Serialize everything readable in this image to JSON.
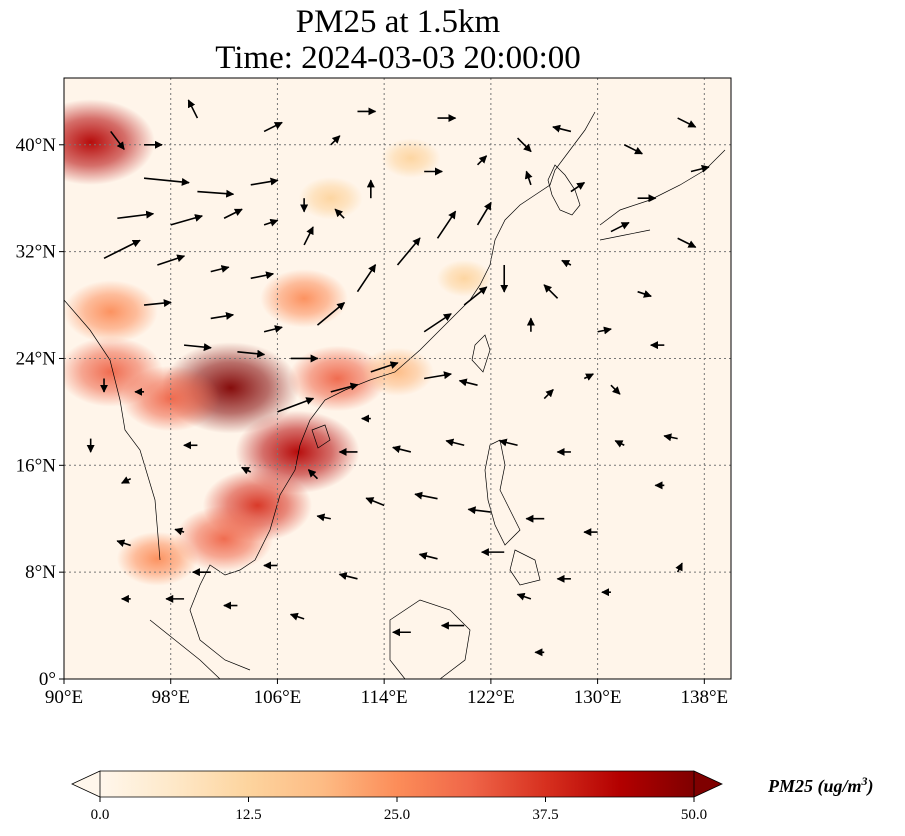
{
  "title": {
    "line1": "PM25 at 1.5km",
    "line2": "Time: 2024-03-03 20:00:00"
  },
  "map": {
    "lon_range": [
      90,
      140
    ],
    "lat_range": [
      0,
      45
    ],
    "x_ticks": [
      "90°E",
      "98°E",
      "106°E",
      "114°E",
      "122°E",
      "130°E",
      "138°E"
    ],
    "x_tick_values": [
      90,
      98,
      106,
      114,
      122,
      130,
      138
    ],
    "y_ticks": [
      "0°",
      "8°N",
      "16°N",
      "24°N",
      "32°N",
      "40°N"
    ],
    "y_tick_values": [
      0,
      8,
      16,
      24,
      32,
      40
    ],
    "gridlines": true,
    "hotspots": [
      {
        "lon": 102.5,
        "lat": 21.8,
        "value": 48
      },
      {
        "lon": 107.5,
        "lat": 17.0,
        "value": 42
      },
      {
        "lon": 104.5,
        "lat": 13.0,
        "value": 35
      },
      {
        "lon": 102.0,
        "lat": 10.5,
        "value": 30
      },
      {
        "lon": 93.5,
        "lat": 23.0,
        "value": 33
      },
      {
        "lon": 93.5,
        "lat": 27.5,
        "value": 28
      },
      {
        "lon": 108.0,
        "lat": 28.5,
        "value": 25
      },
      {
        "lon": 110.5,
        "lat": 22.5,
        "value": 30
      },
      {
        "lon": 92.0,
        "lat": 40.2,
        "value": 44
      },
      {
        "lon": 98.0,
        "lat": 21.0,
        "value": 30
      },
      {
        "lon": 97.0,
        "lat": 9.0,
        "value": 22
      },
      {
        "lon": 115.0,
        "lat": 23.0,
        "value": 18
      },
      {
        "lon": 110.0,
        "lat": 36.0,
        "value": 14
      },
      {
        "lon": 116.0,
        "lat": 39.0,
        "value": 12
      },
      {
        "lon": 120.0,
        "lat": 30.0,
        "value": 10
      }
    ],
    "wind_vectors": [
      [
        96.0,
        37.5,
        5.0,
        -0.5
      ],
      [
        100.0,
        36.5,
        4.0,
        -0.3
      ],
      [
        104.0,
        37.0,
        3.0,
        0.5
      ],
      [
        94.0,
        34.5,
        4.0,
        0.5
      ],
      [
        98.0,
        34.0,
        3.5,
        1.0
      ],
      [
        102.0,
        34.5,
        2.0,
        1.0
      ],
      [
        93.0,
        31.5,
        4.0,
        2.0
      ],
      [
        97.0,
        31.0,
        3.0,
        1.0
      ],
      [
        101.0,
        30.5,
        2.0,
        0.5
      ],
      [
        96.0,
        28.0,
        3.0,
        0.3
      ],
      [
        101.0,
        27.0,
        2.5,
        0.4
      ],
      [
        105.0,
        26.0,
        2.0,
        0.5
      ],
      [
        99.0,
        25.0,
        3.0,
        -0.3
      ],
      [
        103.0,
        24.5,
        3.0,
        -0.3
      ],
      [
        107.0,
        24.0,
        3.0,
        0.0
      ],
      [
        106.0,
        20.0,
        4.0,
        1.5
      ],
      [
        110.0,
        21.5,
        3.0,
        0.8
      ],
      [
        109.0,
        26.5,
        3.0,
        2.5
      ],
      [
        112.0,
        29.0,
        2.0,
        3.0
      ],
      [
        115.0,
        31.0,
        2.5,
        3.0
      ],
      [
        118.0,
        33.0,
        2.0,
        3.0
      ],
      [
        121.0,
        34.0,
        1.5,
        2.5
      ],
      [
        123.0,
        31.0,
        0.0,
        -3.0
      ],
      [
        120.0,
        28.0,
        2.5,
        2.0
      ],
      [
        117.0,
        26.0,
        3.0,
        2.0
      ],
      [
        113.0,
        23.0,
        3.0,
        1.0
      ],
      [
        117.0,
        22.5,
        3.0,
        0.5
      ],
      [
        121.0,
        22.0,
        -2.0,
        0.5
      ],
      [
        125.0,
        26.0,
        0.0,
        1.5
      ],
      [
        128.0,
        31.0,
        -1.0,
        0.5
      ],
      [
        113.0,
        36.0,
        0.0,
        2.0
      ],
      [
        117.0,
        38.0,
        2.0,
        0.0
      ],
      [
        110.0,
        40.0,
        1.0,
        1.0
      ],
      [
        105.0,
        41.0,
        2.0,
        1.0
      ],
      [
        100.0,
        42.0,
        -1.0,
        2.0
      ],
      [
        112.0,
        42.5,
        2.0,
        0.0
      ],
      [
        118.0,
        42.0,
        2.0,
        0.0
      ],
      [
        124.0,
        40.5,
        1.5,
        -1.5
      ],
      [
        128.0,
        41.0,
        -2.0,
        0.5
      ],
      [
        132.0,
        40.0,
        2.0,
        -1.0
      ],
      [
        136.0,
        42.0,
        2.0,
        -1.0
      ],
      [
        137.0,
        38.0,
        2.0,
        0.5
      ],
      [
        133.0,
        36.0,
        2.0,
        0.0
      ],
      [
        128.0,
        36.5,
        1.5,
        1.0
      ],
      [
        131.0,
        33.5,
        2.0,
        1.0
      ],
      [
        136.0,
        33.0,
        2.0,
        -1.0
      ],
      [
        133.0,
        29.0,
        1.5,
        -0.5
      ],
      [
        130.0,
        26.0,
        1.5,
        0.3
      ],
      [
        135.0,
        25.0,
        -1.5,
        0.0
      ],
      [
        131.0,
        22.0,
        1.0,
        -1.0
      ],
      [
        126.0,
        21.0,
        1.0,
        1.0
      ],
      [
        124.0,
        17.5,
        -2.0,
        0.5
      ],
      [
        128.0,
        17.0,
        -1.5,
        0.0
      ],
      [
        132.0,
        17.5,
        -1.0,
        0.5
      ],
      [
        136.0,
        18.0,
        -1.5,
        0.3
      ],
      [
        120.0,
        17.5,
        -2.0,
        0.5
      ],
      [
        116.0,
        17.0,
        -2.0,
        0.5
      ],
      [
        112.0,
        17.0,
        -2.0,
        0.0
      ],
      [
        114.0,
        13.0,
        -2.0,
        0.8
      ],
      [
        118.0,
        13.5,
        -2.5,
        0.5
      ],
      [
        122.0,
        12.5,
        -2.5,
        0.3
      ],
      [
        126.0,
        12.0,
        -2.0,
        0.0
      ],
      [
        130.0,
        11.0,
        -1.5,
        0.0
      ],
      [
        135.0,
        14.5,
        -1.0,
        0.0
      ],
      [
        110.0,
        12.0,
        -1.5,
        0.3
      ],
      [
        118.0,
        9.0,
        -2.0,
        0.5
      ],
      [
        123.0,
        9.5,
        -2.5,
        0.0
      ],
      [
        128.0,
        7.5,
        -1.5,
        0.0
      ],
      [
        112.0,
        7.5,
        -2.0,
        0.5
      ],
      [
        116.0,
        3.5,
        -2.0,
        0.0
      ],
      [
        120.0,
        4.0,
        -2.5,
        0.0
      ],
      [
        126.0,
        2.0,
        -1.0,
        0.0
      ],
      [
        108.0,
        4.5,
        -1.5,
        0.5
      ],
      [
        103.0,
        5.5,
        -1.5,
        0.0
      ],
      [
        99.0,
        6.0,
        -2.0,
        0.0
      ],
      [
        95.0,
        6.0,
        -1.0,
        0.0
      ],
      [
        95.0,
        10.0,
        -1.5,
        0.5
      ],
      [
        99.0,
        11.0,
        -1.0,
        0.3
      ],
      [
        101.0,
        8.0,
        -2.0,
        0.0
      ],
      [
        106.0,
        8.5,
        -1.5,
        0.0
      ],
      [
        109.0,
        15.0,
        -1.0,
        1.0
      ],
      [
        104.0,
        15.5,
        -1.0,
        0.5
      ],
      [
        100.0,
        17.5,
        -1.5,
        0.0
      ],
      [
        95.0,
        15.0,
        -1.0,
        -0.5
      ],
      [
        92.0,
        18.0,
        0.0,
        -1.5
      ],
      [
        93.0,
        22.5,
        0.0,
        -1.5
      ],
      [
        96.0,
        21.5,
        -1.0,
        0.0
      ],
      [
        108.0,
        32.5,
        1.0,
        2.0
      ],
      [
        105.0,
        34.0,
        1.5,
        0.5
      ],
      [
        108.0,
        36.0,
        0.0,
        -1.5
      ],
      [
        111.0,
        34.5,
        -1.0,
        1.0
      ],
      [
        93.5,
        41.0,
        1.5,
        -2.0
      ],
      [
        121.0,
        38.5,
        1.0,
        1.0
      ],
      [
        125.0,
        37.0,
        -0.5,
        1.5
      ],
      [
        127.0,
        28.5,
        -1.5,
        1.5
      ],
      [
        129.0,
        22.5,
        1.0,
        0.5
      ],
      [
        113.0,
        19.5,
        -1.0,
        0.0
      ],
      [
        125.0,
        6.0,
        -1.5,
        0.5
      ],
      [
        131.0,
        6.5,
        -1.0,
        0.0
      ],
      [
        136.0,
        8.0,
        0.5,
        1.0
      ],
      [
        104.0,
        30.0,
        2.5,
        0.5
      ],
      [
        96.0,
        40.0,
        2.0,
        0.0
      ]
    ]
  },
  "colorbar": {
    "label_main": "PM25 (ug/m",
    "label_exp": "3",
    "label_end": ")",
    "vmin": 0.0,
    "vmax": 50.0,
    "tick_labels": [
      "0.0",
      "12.5",
      "25.0",
      "37.5",
      "50.0"
    ],
    "tick_values": [
      0,
      12.5,
      25,
      37.5,
      50
    ],
    "colormap": "OrRd",
    "colors": [
      "#fff7ec",
      "#fee8c8",
      "#fdd49e",
      "#fdbb84",
      "#fc8d59",
      "#ef6548",
      "#d7301f",
      "#b30000",
      "#7f0000"
    ],
    "extend": "both"
  }
}
